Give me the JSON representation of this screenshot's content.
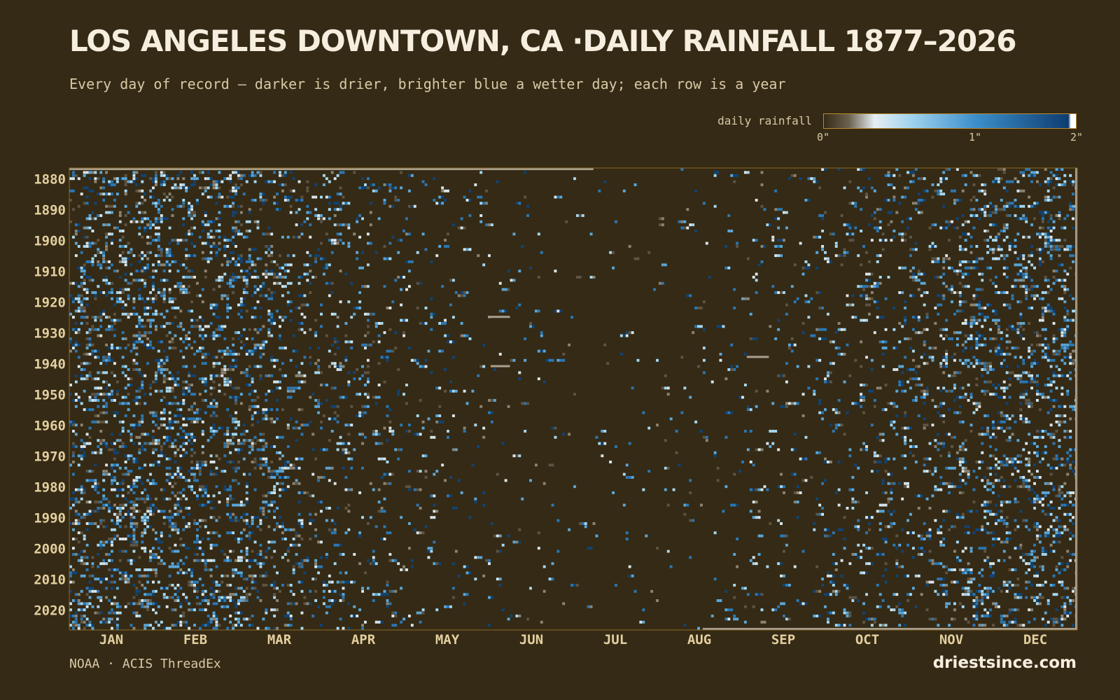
{
  "header": {
    "title": "LOS ANGELES DOWNTOWN, CA ·DAILY RAINFALL 1877–2026",
    "subtitle": "Every day of record — darker is drier, brighter blue a wetter day; each row is a year"
  },
  "legend": {
    "label": "daily rainfall",
    "ticks": [
      "0\"",
      "1\"",
      "2\""
    ],
    "colors": [
      "#352a15",
      "#6b6250",
      "#e6eef2",
      "#9fd3ee",
      "#3c8fcb",
      "#0e3d70",
      "#ffffff"
    ]
  },
  "footer": {
    "source": "NOAA · ACIS ThreadEx",
    "site": "driestsince.com"
  },
  "chart_data": {
    "type": "heatmap",
    "x_unit": "day of year",
    "y_unit": "year",
    "value_unit": "inches",
    "year_range": [
      1877,
      2026
    ],
    "value_range": [
      0,
      2
    ],
    "y_ticks": [
      "1880",
      "1890",
      "1900",
      "1910",
      "1920",
      "1930",
      "1940",
      "1950",
      "1960",
      "1970",
      "1980",
      "1990",
      "2000",
      "2010",
      "2020"
    ],
    "x_ticks": [
      "JAN",
      "FEB",
      "MAR",
      "APR",
      "MAY",
      "JUN",
      "JUL",
      "AUG",
      "SEP",
      "OCT",
      "NOV",
      "DEC"
    ],
    "monthly_wet_day_share": [
      0.2,
      0.21,
      0.18,
      0.1,
      0.05,
      0.03,
      0.01,
      0.015,
      0.03,
      0.06,
      0.1,
      0.18
    ],
    "record_start_day_1877": 183,
    "record_end_day_2026": 232
  }
}
